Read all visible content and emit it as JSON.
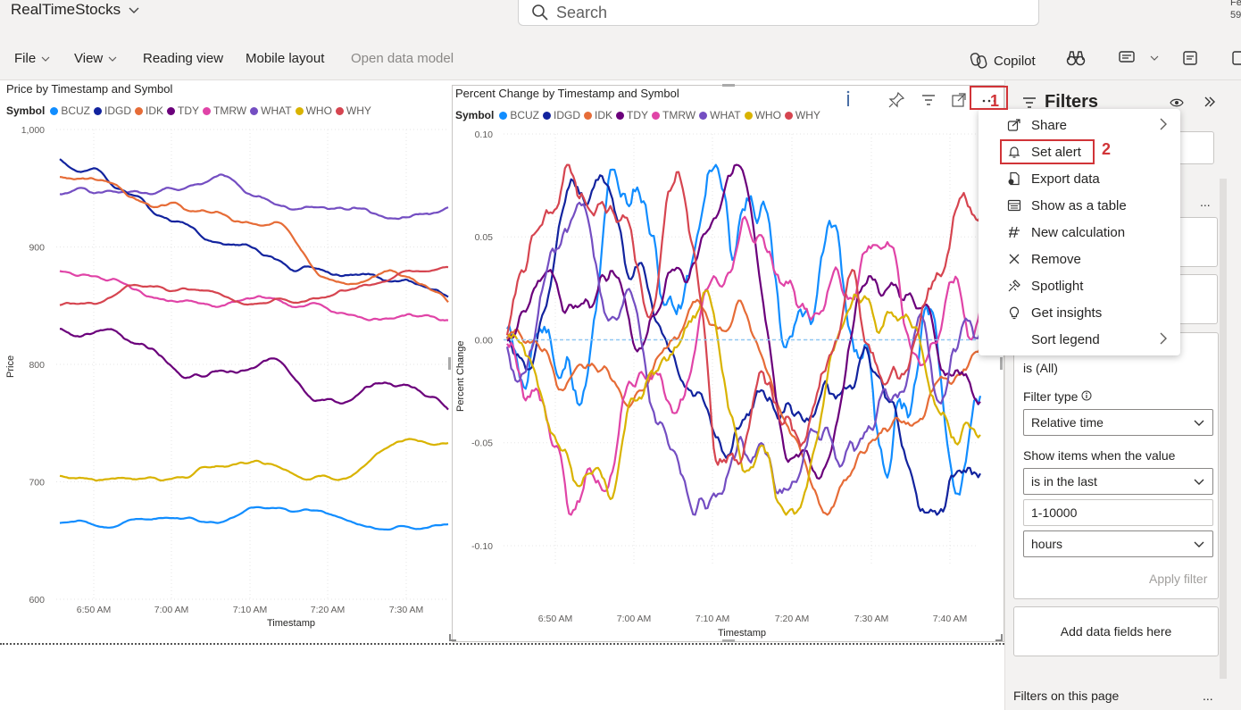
{
  "app": {
    "title": "RealTimeStocks",
    "corner_text": [
      "Fe",
      "59"
    ]
  },
  "search": {
    "placeholder": "Search"
  },
  "menu": {
    "file": "File",
    "view": "View",
    "reading_view": "Reading view",
    "mobile_layout": "Mobile layout",
    "open_data_model": "Open data model",
    "copilot": "Copilot"
  },
  "colors": {
    "BCUZ": "#118dff",
    "IDGD": "#12239e",
    "IDK": "#e66c37",
    "TDY": "#6b007b",
    "TMRW": "#e044a7",
    "WHAT": "#744ec2",
    "WHO": "#d9b300",
    "WHY": "#d64550"
  },
  "legend": {
    "title": "Symbol",
    "items": [
      "BCUZ",
      "IDGD",
      "IDK",
      "TDY",
      "TMRW",
      "WHAT",
      "WHO",
      "WHY"
    ]
  },
  "visual_left": {
    "title": "Price by Timestamp and Symbol",
    "ylabel": "Price",
    "xlabel": "Timestamp"
  },
  "visual_right": {
    "title": "Percent Change by Timestamp and Symbol",
    "ylabel": "Percent Change",
    "xlabel": "Timestamp"
  },
  "chart_data": [
    {
      "type": "line",
      "title": "Price by Timestamp and Symbol",
      "xlabel": "Timestamp",
      "ylabel": "Price",
      "ylim": [
        600,
        1000
      ],
      "yticks": [
        "1,000",
        "900",
        "800",
        "700",
        "600"
      ],
      "xticks": [
        "6:50 AM",
        "7:00 AM",
        "7:10 AM",
        "7:20 AM",
        "7:30 AM"
      ],
      "xlim_minutes": [
        6.72,
        7.6
      ],
      "legend_placement": "top-left",
      "grid": true,
      "series": [
        {
          "name": "WHAT",
          "base": 945,
          "end": 925,
          "amp": 25,
          "seed": 1
        },
        {
          "name": "IDGD",
          "base": 975,
          "end": 845,
          "amp": 20,
          "seed": 2
        },
        {
          "name": "IDK",
          "base": 960,
          "end": 865,
          "amp": 22,
          "seed": 3
        },
        {
          "name": "TMRW",
          "base": 880,
          "end": 840,
          "amp": 15,
          "seed": 4
        },
        {
          "name": "WHY",
          "base": 850,
          "end": 865,
          "amp": 18,
          "seed": 5
        },
        {
          "name": "TDY",
          "base": 830,
          "end": 775,
          "amp": 25,
          "seed": 6
        },
        {
          "name": "WHO",
          "base": 705,
          "end": 735,
          "amp": 25,
          "seed": 7
        },
        {
          "name": "BCUZ",
          "base": 665,
          "end": 662,
          "amp": 15,
          "seed": 8
        }
      ]
    },
    {
      "type": "line",
      "title": "Percent Change by Timestamp and Symbol",
      "xlabel": "Timestamp",
      "ylabel": "Percent Change",
      "ylim": [
        -0.11,
        0.1
      ],
      "yticks": [
        "0.10",
        "0.05",
        "0.00",
        "-0.05",
        "-0.10"
      ],
      "xticks": [
        "6:50 AM",
        "7:00 AM",
        "7:10 AM",
        "7:20 AM",
        "7:30 AM",
        "7:40 AM"
      ],
      "reference_line": 0.0,
      "legend_placement": "top-left",
      "grid": true,
      "series": [
        {
          "name": "BCUZ",
          "seed": 11
        },
        {
          "name": "IDGD",
          "seed": 12
        },
        {
          "name": "IDK",
          "seed": 13
        },
        {
          "name": "TDY",
          "seed": 14
        },
        {
          "name": "TMRW",
          "seed": 15
        },
        {
          "name": "WHAT",
          "seed": 16
        },
        {
          "name": "WHO",
          "seed": 17
        },
        {
          "name": "WHY",
          "seed": 18
        }
      ]
    }
  ],
  "context_menu": {
    "items": [
      {
        "label": "Share",
        "icon": "share-icon",
        "submenu": true
      },
      {
        "label": "Set alert",
        "icon": "bell-icon",
        "submenu": false
      },
      {
        "label": "Export data",
        "icon": "export-icon",
        "submenu": false
      },
      {
        "label": "Show as a table",
        "icon": "table-icon",
        "submenu": false
      },
      {
        "label": "New calculation",
        "icon": "calculation-icon",
        "submenu": false
      },
      {
        "label": "Remove",
        "icon": "close-icon",
        "submenu": false
      },
      {
        "label": "Spotlight",
        "icon": "spotlight-icon",
        "submenu": false
      },
      {
        "label": "Get insights",
        "icon": "lightbulb-icon",
        "submenu": false
      },
      {
        "label": "Sort legend",
        "icon": "",
        "submenu": true
      }
    ]
  },
  "annotations": {
    "step1": "1",
    "step2": "2"
  },
  "filters": {
    "title": "Filters",
    "is_all": "is (All)",
    "filter_type_label": "Filter type",
    "filter_type_value": "Relative time",
    "show_items_label": "Show items when the value",
    "condition_value": "is in the last",
    "range_value": "1-10000",
    "unit_value": "hours",
    "apply_filter": "Apply filter",
    "add_data_fields": "Add data fields here",
    "filters_on_page": "Filters on this page",
    "more": "..."
  }
}
